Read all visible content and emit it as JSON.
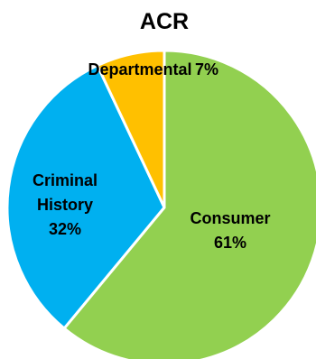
{
  "chart_data": {
    "type": "pie",
    "title": "ACR",
    "start": "12 o'clock, clockwise",
    "slices": [
      {
        "label": "Consumer",
        "value": 61,
        "percent_label": "61%",
        "color": "#92d050"
      },
      {
        "label": "Criminal History",
        "value": 32,
        "percent_label": "32%",
        "color": "#00b0f0"
      },
      {
        "label": "Departmental",
        "value": 7,
        "percent_label": "7%",
        "color": "#ffc000"
      }
    ],
    "slice_border_color": "#ffffff",
    "legend": "none"
  }
}
